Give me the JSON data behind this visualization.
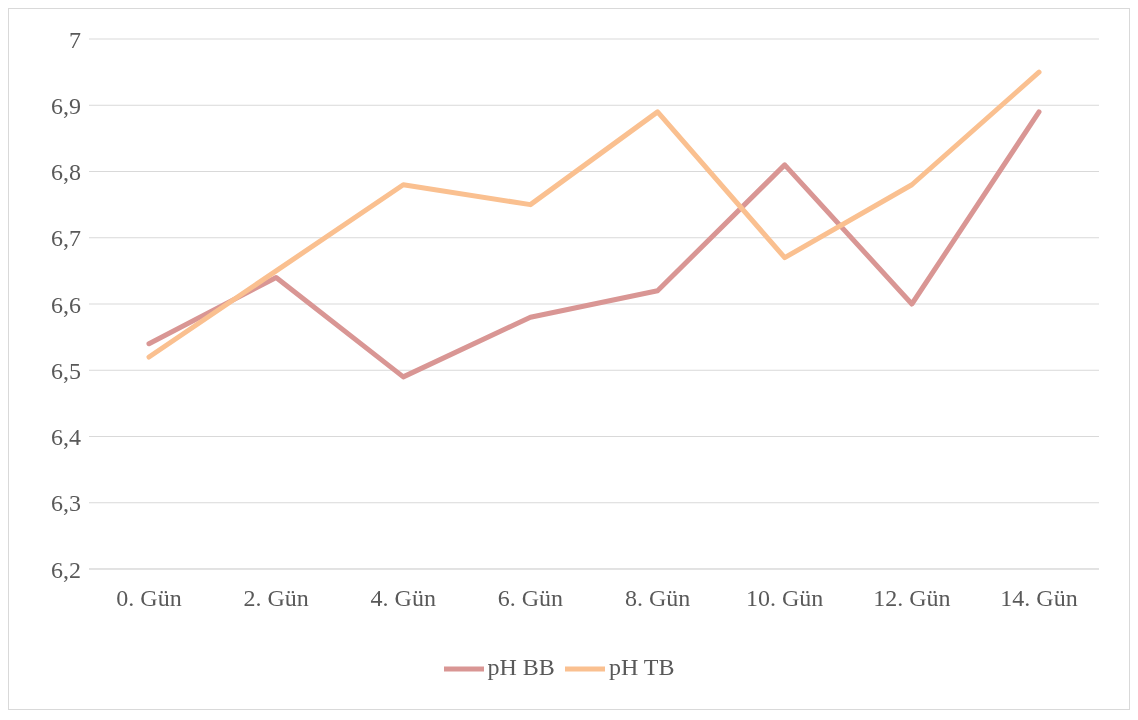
{
  "chart_data": {
    "type": "line",
    "categories": [
      "0. Gün",
      "2. Gün",
      "4. Gün",
      "6. Gün",
      "8. Gün",
      "10. Gün",
      "12. Gün",
      "14. Gün"
    ],
    "series": [
      {
        "name": "pH BB",
        "color": "#d99694",
        "values": [
          6.54,
          6.64,
          6.49,
          6.58,
          6.62,
          6.81,
          6.6,
          6.89
        ]
      },
      {
        "name": "pH TB",
        "color": "#fac090",
        "values": [
          6.52,
          6.65,
          6.78,
          6.75,
          6.89,
          6.67,
          6.78,
          6.95
        ]
      }
    ],
    "ylim": [
      6.2,
      7
    ],
    "yticks": [
      {
        "value": 6.2,
        "label": "6,2"
      },
      {
        "value": 6.3,
        "label": "6,3"
      },
      {
        "value": 6.4,
        "label": "6,4"
      },
      {
        "value": 6.5,
        "label": "6,5"
      },
      {
        "value": 6.6,
        "label": "6,6"
      },
      {
        "value": 6.7,
        "label": "6,7"
      },
      {
        "value": 6.8,
        "label": "6,8"
      },
      {
        "value": 6.9,
        "label": "6,9"
      },
      7
    ],
    "grid": "y",
    "legend": "bottom",
    "marker": "none",
    "line_style": "solid"
  }
}
